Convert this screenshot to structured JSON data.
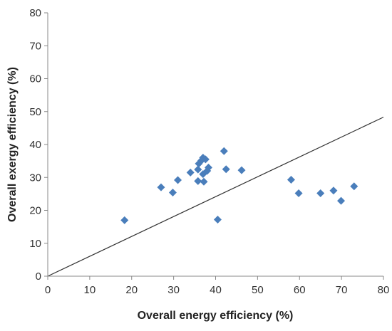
{
  "chart_data": {
    "type": "scatter",
    "title": "",
    "xlabel": "Overall energy efficiency (%)",
    "ylabel": "Overall exergy efficiency (%)",
    "xlim": [
      0,
      80
    ],
    "ylim": [
      0,
      80
    ],
    "x_ticks": [
      "0",
      "10",
      "20",
      "30",
      "40",
      "50",
      "60",
      "70",
      "80"
    ],
    "y_ticks": [
      "0",
      "10",
      "20",
      "30",
      "40",
      "50",
      "60",
      "70",
      "80"
    ],
    "grid": false,
    "legend": "none",
    "marker": "diamond",
    "marker_color": "#4a7ebb",
    "line_color": "#333333",
    "points": [
      {
        "x": 18.3,
        "y": 17.0
      },
      {
        "x": 27.0,
        "y": 27.0
      },
      {
        "x": 29.8,
        "y": 25.4
      },
      {
        "x": 31.0,
        "y": 29.2
      },
      {
        "x": 34.0,
        "y": 31.5
      },
      {
        "x": 35.8,
        "y": 28.9
      },
      {
        "x": 35.8,
        "y": 32.4
      },
      {
        "x": 36.0,
        "y": 34.2
      },
      {
        "x": 36.6,
        "y": 35.1
      },
      {
        "x": 37.0,
        "y": 36.0
      },
      {
        "x": 37.0,
        "y": 31.0
      },
      {
        "x": 37.2,
        "y": 28.7
      },
      {
        "x": 37.6,
        "y": 35.5
      },
      {
        "x": 38.0,
        "y": 32.0
      },
      {
        "x": 38.3,
        "y": 33.0
      },
      {
        "x": 40.5,
        "y": 17.2
      },
      {
        "x": 42.0,
        "y": 38.0
      },
      {
        "x": 42.5,
        "y": 32.5
      },
      {
        "x": 46.2,
        "y": 32.2
      },
      {
        "x": 58.0,
        "y": 29.3
      },
      {
        "x": 59.8,
        "y": 25.2
      },
      {
        "x": 65.0,
        "y": 25.2
      },
      {
        "x": 68.1,
        "y": 26.0
      },
      {
        "x": 69.9,
        "y": 22.9
      },
      {
        "x": 73.0,
        "y": 27.3
      }
    ],
    "reference_line": [
      [
        0,
        0
      ],
      [
        80,
        48.3
      ]
    ]
  }
}
